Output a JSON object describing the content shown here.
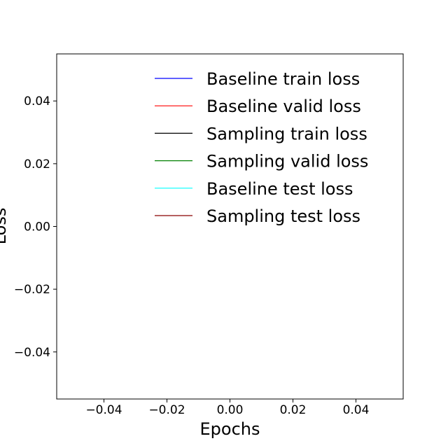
{
  "chart_data": {
    "type": "line",
    "title": "",
    "xlabel": "Epochs",
    "ylabel": "Loss",
    "xlim": [
      -0.055,
      0.055
    ],
    "ylim": [
      -0.055,
      0.055
    ],
    "xticks": [
      -0.04,
      -0.02,
      0.0,
      0.02,
      0.04
    ],
    "yticks": [
      -0.04,
      -0.02,
      0.0,
      0.02,
      0.04
    ],
    "xtick_labels": [
      "−0.04",
      "−0.02",
      "0.00",
      "0.02",
      "0.04"
    ],
    "ytick_labels": [
      "−0.04",
      "−0.02",
      "0.00",
      "0.02",
      "0.04"
    ],
    "grid": false,
    "legend_position": "top-right",
    "series": [
      {
        "name": "Baseline train loss",
        "color": "#0000ff",
        "x": [],
        "y": []
      },
      {
        "name": "Baseline valid loss",
        "color": "#ff0000",
        "x": [],
        "y": []
      },
      {
        "name": "Sampling train loss",
        "color": "#000000",
        "x": [],
        "y": []
      },
      {
        "name": "Sampling valid loss",
        "color": "#008000",
        "x": [],
        "y": []
      },
      {
        "name": "Baseline test loss",
        "color": "#00ffff",
        "x": [],
        "y": []
      },
      {
        "name": "Sampling test loss",
        "color": "#8b0000",
        "x": [],
        "y": []
      }
    ]
  }
}
